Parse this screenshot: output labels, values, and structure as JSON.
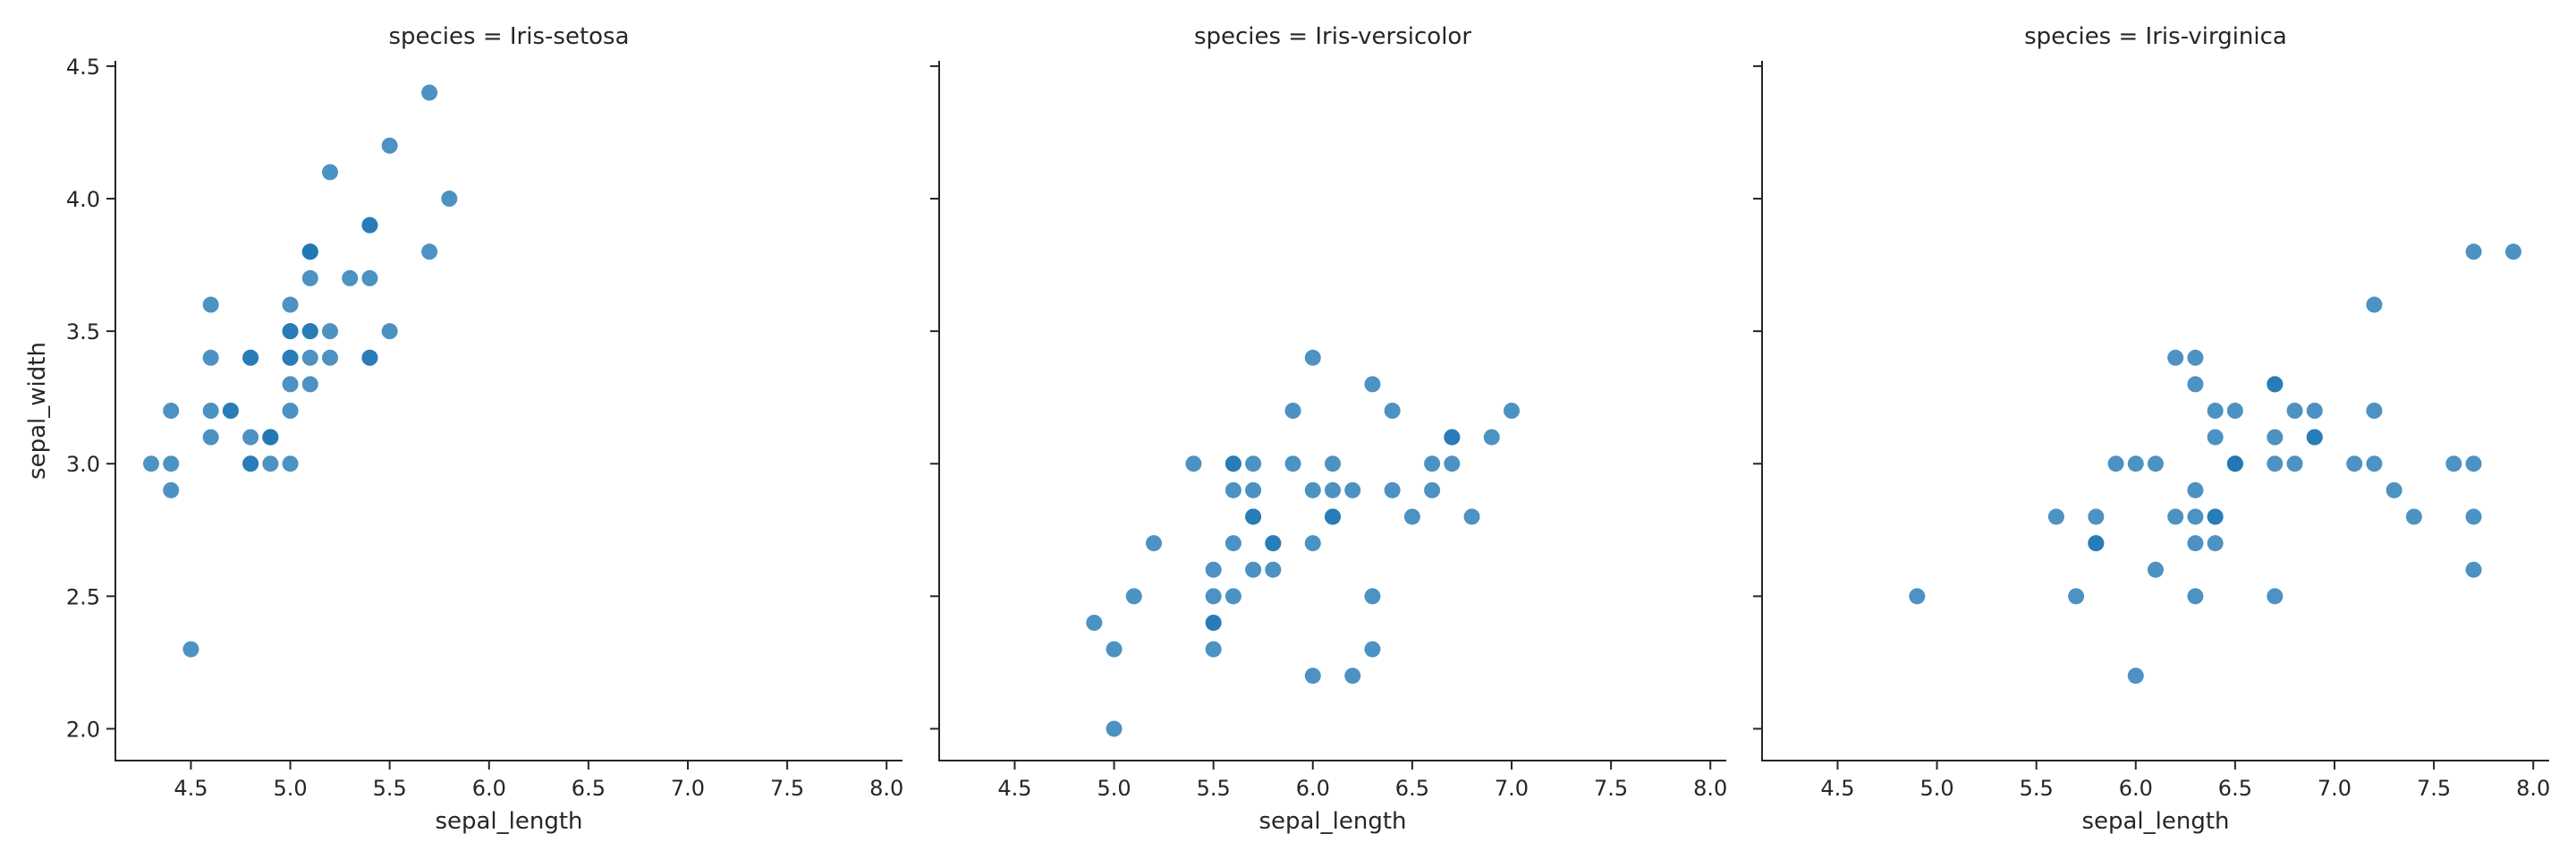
{
  "chart_data": {
    "type": "scatter",
    "facet_by": "species",
    "shared_axes": true,
    "xlabel": "sepal_length",
    "ylabel": "sepal_width",
    "xlim": [
      4.12,
      8.08
    ],
    "ylim": [
      1.88,
      4.52
    ],
    "xticks": [
      4.5,
      5.0,
      5.5,
      6.0,
      6.5,
      7.0,
      7.5,
      8.0
    ],
    "xtick_labels": [
      "4.5",
      "5.0",
      "5.5",
      "6.0",
      "6.5",
      "7.0",
      "7.5",
      "8.0"
    ],
    "yticks": [
      2.0,
      2.5,
      3.0,
      3.5,
      4.0,
      4.5
    ],
    "ytick_labels": [
      "2.0",
      "2.5",
      "3.0",
      "3.5",
      "4.0",
      "4.5"
    ],
    "grid": false,
    "point_color": "#1f77b4",
    "panels": [
      {
        "title": "species = Iris-setosa",
        "x": [
          5.1,
          4.9,
          4.7,
          4.6,
          5.0,
          5.4,
          4.6,
          5.0,
          4.4,
          4.9,
          5.4,
          4.8,
          4.8,
          4.3,
          5.8,
          5.7,
          5.4,
          5.1,
          5.7,
          5.1,
          5.4,
          5.1,
          4.6,
          5.1,
          4.8,
          5.0,
          5.0,
          5.2,
          5.2,
          4.7,
          4.8,
          5.4,
          5.2,
          5.5,
          4.9,
          5.0,
          5.5,
          4.9,
          4.4,
          5.1,
          5.0,
          4.5,
          4.4,
          5.0,
          5.1,
          4.8,
          5.1,
          4.6,
          5.3,
          5.0
        ],
        "y": [
          3.5,
          3.0,
          3.2,
          3.1,
          3.6,
          3.9,
          3.4,
          3.4,
          2.9,
          3.1,
          3.7,
          3.4,
          3.0,
          3.0,
          4.0,
          4.4,
          3.9,
          3.5,
          3.8,
          3.8,
          3.4,
          3.7,
          3.6,
          3.3,
          3.4,
          3.0,
          3.4,
          3.5,
          3.4,
          3.2,
          3.1,
          3.4,
          4.1,
          4.2,
          3.1,
          3.2,
          3.5,
          3.1,
          3.0,
          3.4,
          3.5,
          2.3,
          3.2,
          3.5,
          3.8,
          3.0,
          3.8,
          3.2,
          3.7,
          3.3
        ]
      },
      {
        "title": "species = Iris-versicolor",
        "x": [
          7.0,
          6.4,
          6.9,
          5.5,
          6.5,
          5.7,
          6.3,
          4.9,
          6.6,
          5.2,
          5.0,
          5.9,
          6.0,
          6.1,
          5.6,
          6.7,
          5.6,
          5.8,
          6.2,
          5.6,
          5.9,
          6.1,
          6.3,
          6.1,
          6.4,
          6.6,
          6.8,
          6.7,
          6.0,
          5.7,
          5.5,
          5.5,
          5.8,
          6.0,
          5.4,
          6.0,
          6.7,
          6.3,
          5.6,
          5.5,
          5.5,
          6.1,
          5.8,
          5.0,
          5.6,
          5.7,
          5.7,
          6.2,
          5.1,
          5.7
        ],
        "y": [
          3.2,
          3.2,
          3.1,
          2.3,
          2.8,
          2.8,
          3.3,
          2.4,
          2.9,
          2.7,
          2.0,
          3.0,
          2.2,
          2.9,
          2.9,
          3.1,
          3.0,
          2.7,
          2.2,
          2.5,
          3.2,
          2.8,
          2.5,
          2.8,
          2.9,
          3.0,
          2.8,
          3.0,
          2.9,
          2.6,
          2.4,
          2.4,
          2.7,
          2.7,
          3.0,
          3.4,
          3.1,
          2.3,
          3.0,
          2.5,
          2.6,
          3.0,
          2.6,
          2.3,
          2.7,
          3.0,
          2.9,
          2.9,
          2.5,
          2.8
        ]
      },
      {
        "title": "species = Iris-virginica",
        "x": [
          6.3,
          5.8,
          7.1,
          6.3,
          6.5,
          7.6,
          4.9,
          7.3,
          6.7,
          7.2,
          6.5,
          6.4,
          6.8,
          5.7,
          5.8,
          6.4,
          6.5,
          7.7,
          7.7,
          6.0,
          6.9,
          5.6,
          7.7,
          6.3,
          6.7,
          7.2,
          6.2,
          6.1,
          6.4,
          7.2,
          7.4,
          7.9,
          6.4,
          6.3,
          6.1,
          7.7,
          6.3,
          6.4,
          6.0,
          6.9,
          6.7,
          6.9,
          5.8,
          6.8,
          6.7,
          6.7,
          6.3,
          6.5,
          6.2,
          5.9
        ],
        "y": [
          3.3,
          2.7,
          3.0,
          2.9,
          3.0,
          3.0,
          2.5,
          2.9,
          2.5,
          3.6,
          3.2,
          2.7,
          3.0,
          2.5,
          2.8,
          3.2,
          3.0,
          3.8,
          2.6,
          2.2,
          3.2,
          2.8,
          2.8,
          2.7,
          3.3,
          3.2,
          2.8,
          3.0,
          2.8,
          3.0,
          2.8,
          3.8,
          2.8,
          2.8,
          2.6,
          3.0,
          3.4,
          3.1,
          3.0,
          3.1,
          3.1,
          3.1,
          2.7,
          3.2,
          3.3,
          3.0,
          2.5,
          3.0,
          3.4,
          3.0
        ]
      }
    ]
  }
}
